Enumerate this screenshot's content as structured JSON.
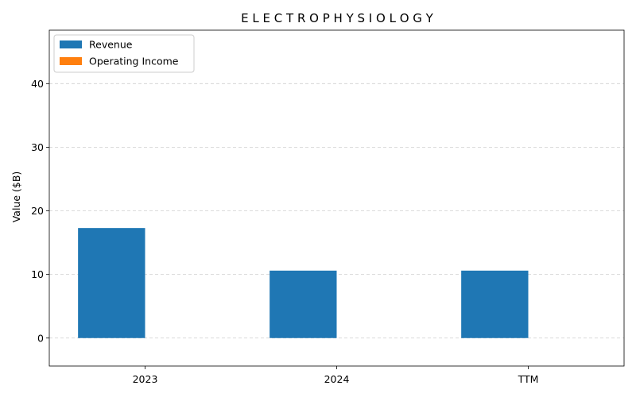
{
  "chart_data": {
    "type": "bar",
    "title": "E L E C T R O P H Y S I O L O G Y",
    "xlabel": "",
    "ylabel": "Value ($B)",
    "categories": [
      "2023",
      "2024",
      "TTM"
    ],
    "series": [
      {
        "name": "Revenue",
        "values": [
          17.3,
          10.6,
          10.6
        ],
        "color": "#1f77b4"
      },
      {
        "name": "Operating Income",
        "values": [
          0,
          0,
          0
        ],
        "color": "#ff7f0e"
      }
    ],
    "ylim": [
      -4.4,
      48.4
    ],
    "yticks": [
      0,
      10,
      20,
      30,
      40
    ],
    "grid": true,
    "legend": "top-left"
  }
}
